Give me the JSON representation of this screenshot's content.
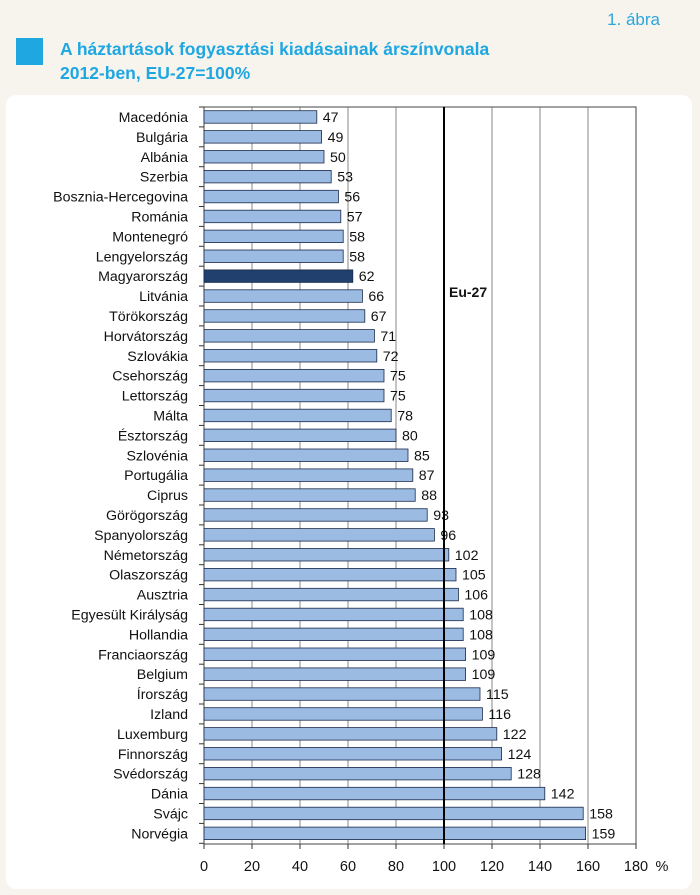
{
  "figure_label": "1. ábra",
  "title_lines": [
    "A háztartások fogyasztási kiadásainak árszínvonala",
    "2012-ben, EU-27=100%"
  ],
  "colors": {
    "accent": "#1ea7e1",
    "bar": "#9bbbe3",
    "bar_highlight": "#22406e",
    "bar_outline": "#1b2a4a"
  },
  "chart_data": {
    "type": "bar",
    "orientation": "horizontal",
    "title": "A háztartások fogyasztási kiadásainak árszínvonala 2012-ben, EU-27=100%",
    "categories": [
      "Macedónia",
      "Bulgária",
      "Albánia",
      "Szerbia",
      "Bosznia-Hercegovina",
      "Románia",
      "Montenegró",
      "Lengyelország",
      "Magyarország",
      "Litvánia",
      "Törökország",
      "Horvátország",
      "Szlovákia",
      "Csehország",
      "Lettország",
      "Málta",
      "Észtország",
      "Szlovénia",
      "Portugália",
      "Ciprus",
      "Görögország",
      "Spanyolország",
      "Németország",
      "Olaszország",
      "Ausztria",
      "Egyesült Királyság",
      "Hollandia",
      "Franciaország",
      "Belgium",
      "Írország",
      "Izland",
      "Luxemburg",
      "Finnország",
      "Svédország",
      "Dánia",
      "Svájc",
      "Norvégia"
    ],
    "values": [
      47,
      49,
      50,
      53,
      56,
      57,
      58,
      58,
      62,
      66,
      67,
      71,
      72,
      75,
      75,
      78,
      80,
      85,
      87,
      88,
      93,
      96,
      102,
      105,
      106,
      108,
      108,
      109,
      109,
      115,
      116,
      122,
      124,
      128,
      142,
      158,
      159
    ],
    "highlight": "Magyarország",
    "xlim": [
      0,
      180
    ],
    "xticks": [
      0,
      20,
      40,
      60,
      80,
      100,
      120,
      140,
      160,
      180
    ],
    "x_unit": "%",
    "reference_line": {
      "value": 100,
      "label": "Eu-27"
    },
    "grid": "vertical"
  }
}
